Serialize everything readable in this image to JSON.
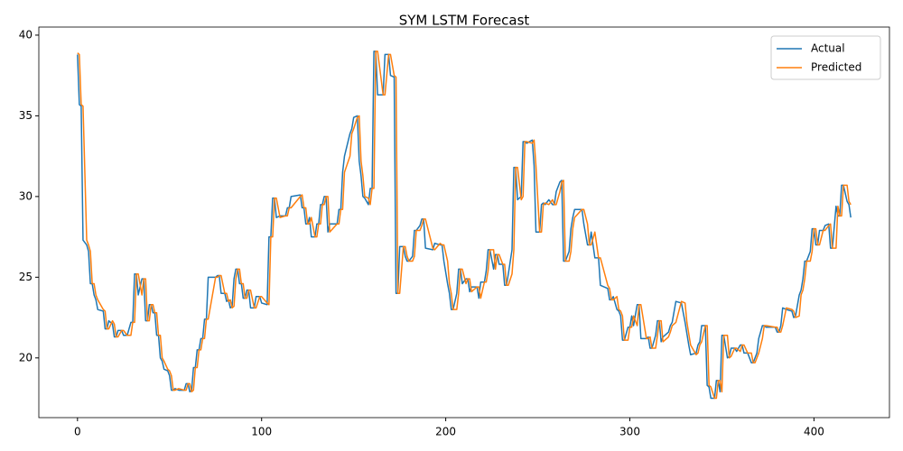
{
  "chart_data": {
    "type": "line",
    "title": "SYM LSTM Forecast",
    "x": [
      0,
      1,
      2,
      3,
      5,
      6,
      7,
      8,
      9,
      10,
      11,
      14,
      15,
      16,
      17,
      19,
      20,
      21,
      22,
      24,
      25,
      27,
      29,
      30,
      31,
      32,
      33,
      35,
      36,
      37,
      38,
      39,
      40,
      41,
      42,
      43,
      44,
      45,
      46,
      47,
      49,
      50,
      51,
      52,
      53,
      55,
      58,
      59,
      60,
      61,
      62,
      63,
      64,
      65,
      66,
      67,
      68,
      69,
      70,
      71,
      75,
      76,
      77,
      78,
      80,
      81,
      82,
      83,
      84,
      85,
      86,
      87,
      88,
      89,
      90,
      91,
      92,
      93,
      94,
      96,
      97,
      99,
      100,
      103,
      104,
      105,
      106,
      107,
      108,
      110,
      113,
      114,
      115,
      116,
      121,
      122,
      123,
      124,
      125,
      126,
      127,
      129,
      130,
      131,
      132,
      133,
      134,
      135,
      136,
      137,
      141,
      142,
      143,
      144,
      145,
      148,
      149,
      150,
      152,
      153,
      154,
      155,
      156,
      158,
      159,
      160,
      161,
      162,
      163,
      166,
      167,
      169,
      170,
      172,
      173,
      174,
      175,
      177,
      178,
      179,
      180,
      182,
      183,
      184,
      186,
      187,
      188,
      189,
      193,
      194,
      197,
      198,
      199,
      201,
      202,
      203,
      204,
      206,
      207,
      208,
      209,
      211,
      212,
      213,
      214,
      217,
      218,
      219,
      221,
      222,
      223,
      224,
      226,
      227,
      228,
      229,
      231,
      232,
      233,
      234,
      236,
      237,
      238,
      239,
      241,
      242,
      243,
      244,
      247,
      248,
      249,
      251,
      252,
      253,
      254,
      256,
      258,
      259,
      260,
      262,
      263,
      264,
      265,
      267,
      268,
      269,
      270,
      274,
      275,
      277,
      278,
      279,
      281,
      283,
      284,
      288,
      289,
      290,
      291,
      293,
      294,
      295,
      296,
      297,
      299,
      300,
      301,
      302,
      304,
      305,
      306,
      309,
      310,
      311,
      312,
      314,
      315,
      316,
      317,
      318,
      321,
      322,
      323,
      325,
      328,
      330,
      331,
      332,
      333,
      336,
      337,
      338,
      339,
      341,
      342,
      343,
      344,
      346,
      347,
      348,
      349,
      350,
      351,
      353,
      354,
      355,
      357,
      358,
      360,
      361,
      362,
      364,
      366,
      367,
      368,
      369,
      370,
      372,
      373,
      374,
      379,
      380,
      381,
      382,
      383,
      385,
      388,
      389,
      390,
      392,
      393,
      394,
      395,
      396,
      398,
      399,
      400,
      401,
      402,
      403,
      405,
      406,
      408,
      409,
      410,
      412,
      413,
      414,
      415,
      416,
      418,
      419,
      420
    ],
    "series": [
      {
        "name": "Actual",
        "color": "#1f77b4",
        "values": [
          38.8,
          35.7,
          35.6,
          27.3,
          27.0,
          26.6,
          24.6,
          24.6,
          23.9,
          23.6,
          23.0,
          22.9,
          21.8,
          21.8,
          22.3,
          22.1,
          21.3,
          21.3,
          21.7,
          21.7,
          21.4,
          21.4,
          22.2,
          22.2,
          25.2,
          25.2,
          23.9,
          24.9,
          24.9,
          22.3,
          22.3,
          23.3,
          23.3,
          22.8,
          22.8,
          21.4,
          21.4,
          20.0,
          19.8,
          19.3,
          19.2,
          18.9,
          18.0,
          18.0,
          18.1,
          18.0,
          18.0,
          18.4,
          18.4,
          17.9,
          18.0,
          19.4,
          19.4,
          20.5,
          20.5,
          21.2,
          21.2,
          22.4,
          22.4,
          25.0,
          25.0,
          25.1,
          25.1,
          24.0,
          24.0,
          23.5,
          23.6,
          23.1,
          23.2,
          24.9,
          25.5,
          25.5,
          24.6,
          24.6,
          23.7,
          23.7,
          24.2,
          24.2,
          23.1,
          23.1,
          23.8,
          23.8,
          23.4,
          23.3,
          27.5,
          27.5,
          29.9,
          29.9,
          28.7,
          28.8,
          28.8,
          29.3,
          29.3,
          30.0,
          30.1,
          29.3,
          29.3,
          28.3,
          28.3,
          28.7,
          27.5,
          27.5,
          28.3,
          28.3,
          29.5,
          29.5,
          30.0,
          30.0,
          27.8,
          28.3,
          28.3,
          29.2,
          29.2,
          31.5,
          32.5,
          33.9,
          34.2,
          34.9,
          35.0,
          32.2,
          31.3,
          30.0,
          29.9,
          29.5,
          30.5,
          30.5,
          39.0,
          39.0,
          36.3,
          36.3,
          38.8,
          38.8,
          37.5,
          37.4,
          24.0,
          24.0,
          26.9,
          26.9,
          26.3,
          26.0,
          26.0,
          26.3,
          27.9,
          27.9,
          28.2,
          28.6,
          28.6,
          26.8,
          26.7,
          27.1,
          27.0,
          27.0,
          26.0,
          24.6,
          24.0,
          23.0,
          23.0,
          24.0,
          25.5,
          25.5,
          24.6,
          24.9,
          24.9,
          24.1,
          24.4,
          24.4,
          23.7,
          24.7,
          24.7,
          25.4,
          26.7,
          26.7,
          25.5,
          26.4,
          26.4,
          25.8,
          25.8,
          24.5,
          24.5,
          25.2,
          26.7,
          31.8,
          31.8,
          29.8,
          30.0,
          33.4,
          33.4,
          33.3,
          33.5,
          31.9,
          27.8,
          27.8,
          29.5,
          29.6,
          29.5,
          29.8,
          29.5,
          29.5,
          30.3,
          30.9,
          31.0,
          26.0,
          26.0,
          26.6,
          28.0,
          28.7,
          29.2,
          29.2,
          28.3,
          27.0,
          27.0,
          27.8,
          26.2,
          26.2,
          24.5,
          24.3,
          23.6,
          23.6,
          23.8,
          23.0,
          22.9,
          22.6,
          21.1,
          21.1,
          21.9,
          21.9,
          22.6,
          22.0,
          23.3,
          23.3,
          21.2,
          21.2,
          21.3,
          20.6,
          20.6,
          21.4,
          22.3,
          22.3,
          21.0,
          21.3,
          21.6,
          22.0,
          22.2,
          23.5,
          23.4,
          22.2,
          21.5,
          20.8,
          20.2,
          20.3,
          20.8,
          21.0,
          22.0,
          22.0,
          18.3,
          18.2,
          17.5,
          17.5,
          18.6,
          18.6,
          17.9,
          21.4,
          21.4,
          20.0,
          20.1,
          20.6,
          20.6,
          20.4,
          20.8,
          20.8,
          20.3,
          20.3,
          19.7,
          19.7,
          20.0,
          20.3,
          21.2,
          22.0,
          22.0,
          21.9,
          21.9,
          21.6,
          21.6,
          22.0,
          23.1,
          23.0,
          22.9,
          22.5,
          22.6,
          23.9,
          24.2,
          24.9,
          26.0,
          26.0,
          26.6,
          28.0,
          28.0,
          27.0,
          27.0,
          27.9,
          27.9,
          28.2,
          28.3,
          26.8,
          26.8,
          29.4,
          28.8,
          28.8,
          30.7,
          30.7,
          29.7,
          29.5,
          28.7
        ]
      },
      {
        "name": "Predicted",
        "color": "#ff7f0e",
        "values": [
          38.9,
          38.8,
          35.7,
          35.6,
          27.3,
          27.0,
          26.6,
          24.6,
          24.6,
          23.9,
          23.6,
          23.0,
          22.9,
          21.8,
          21.8,
          22.3,
          22.1,
          21.3,
          21.3,
          21.7,
          21.7,
          21.4,
          21.4,
          22.2,
          22.2,
          25.2,
          25.2,
          23.9,
          24.9,
          24.9,
          22.3,
          22.3,
          23.3,
          23.3,
          22.8,
          22.8,
          21.4,
          21.4,
          20.0,
          19.8,
          19.3,
          19.2,
          18.9,
          18.0,
          18.0,
          18.1,
          18.0,
          18.0,
          18.4,
          18.4,
          17.9,
          18.0,
          19.4,
          19.4,
          20.5,
          20.5,
          21.2,
          21.2,
          22.4,
          22.4,
          25.0,
          25.0,
          25.1,
          25.1,
          24.0,
          24.0,
          23.5,
          23.6,
          23.1,
          23.2,
          24.9,
          25.5,
          25.5,
          24.6,
          24.6,
          23.7,
          23.7,
          24.2,
          24.2,
          23.1,
          23.1,
          23.8,
          23.8,
          23.4,
          23.3,
          27.5,
          27.5,
          29.9,
          29.9,
          28.7,
          28.8,
          28.8,
          29.3,
          29.3,
          30.0,
          30.1,
          29.3,
          29.3,
          28.3,
          28.3,
          28.7,
          27.5,
          27.5,
          28.3,
          28.3,
          29.5,
          29.5,
          30.0,
          30.0,
          27.8,
          28.3,
          28.3,
          29.2,
          29.2,
          31.5,
          32.5,
          33.9,
          34.2,
          34.9,
          35.0,
          32.2,
          31.3,
          30.0,
          29.9,
          29.5,
          30.5,
          30.5,
          39.0,
          39.0,
          36.3,
          36.3,
          38.8,
          38.8,
          37.5,
          37.4,
          24.0,
          24.0,
          26.9,
          26.9,
          26.3,
          26.0,
          26.0,
          26.3,
          27.9,
          27.9,
          28.2,
          28.6,
          28.6,
          26.8,
          26.7,
          27.1,
          27.0,
          27.0,
          26.0,
          24.6,
          24.0,
          23.0,
          23.0,
          24.0,
          25.5,
          25.5,
          24.6,
          24.9,
          24.9,
          24.1,
          24.4,
          24.4,
          23.7,
          24.7,
          24.7,
          25.4,
          26.7,
          26.7,
          25.5,
          26.4,
          26.4,
          25.8,
          25.8,
          24.5,
          24.5,
          25.2,
          26.7,
          31.8,
          31.8,
          29.8,
          30.0,
          33.4,
          33.4,
          33.3,
          33.5,
          31.9,
          27.8,
          27.8,
          29.5,
          29.6,
          29.5,
          29.8,
          29.5,
          29.5,
          30.3,
          30.9,
          31.0,
          26.0,
          26.0,
          26.6,
          28.0,
          28.7,
          29.2,
          29.2,
          28.3,
          27.0,
          27.0,
          27.8,
          26.2,
          26.2,
          24.5,
          24.3,
          23.6,
          23.6,
          23.8,
          23.0,
          22.9,
          22.6,
          21.1,
          21.1,
          21.9,
          21.9,
          22.6,
          22.0,
          23.3,
          23.3,
          21.2,
          21.2,
          21.3,
          20.6,
          20.6,
          21.4,
          22.3,
          22.3,
          21.0,
          21.3,
          21.6,
          22.0,
          22.2,
          23.5,
          23.4,
          22.2,
          21.5,
          20.8,
          20.2,
          20.3,
          20.8,
          21.0,
          22.0,
          22.0,
          18.3,
          18.2,
          17.5,
          17.5,
          18.6,
          18.6,
          17.9,
          21.4,
          21.4,
          20.0,
          20.1,
          20.6,
          20.6,
          20.4,
          20.8,
          20.8,
          20.3,
          20.3,
          19.7,
          19.7,
          20.0,
          20.3,
          21.2,
          22.0,
          22.0,
          21.9,
          21.9,
          21.6,
          21.6,
          22.0,
          23.1,
          23.0,
          22.9,
          22.5,
          22.6,
          23.9,
          24.2,
          24.9,
          26.0,
          26.0,
          26.6,
          28.0,
          28.0,
          27.0,
          27.0,
          27.9,
          27.9,
          28.2,
          28.3,
          26.8,
          26.8,
          29.4,
          28.8,
          28.8,
          30.7,
          30.7,
          29.7,
          29.5
        ]
      }
    ],
    "xlim": [
      -21,
      441
    ],
    "xticks": [
      0,
      100,
      200,
      300,
      400
    ],
    "ylim": [
      16.3,
      40.5
    ],
    "yticks": [
      20,
      25,
      30,
      35,
      40
    ],
    "grid": false,
    "legend": "upper right"
  }
}
